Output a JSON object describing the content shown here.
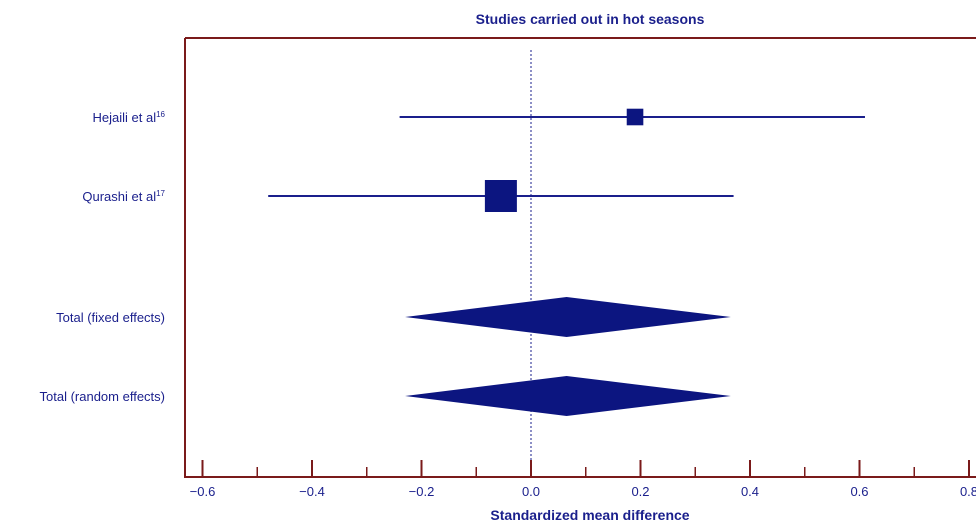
{
  "chart_data": {
    "type": "forest",
    "title": "Studies carried out in hot seasons",
    "xlabel": "Standardized mean difference",
    "xlim": [
      -0.6,
      0.8
    ],
    "ticks": [
      "−0.6",
      "−0.4",
      "−0.2",
      "0.0",
      "0.2",
      "0.4",
      "0.6",
      "0.8"
    ],
    "tick_values": [
      -0.6,
      -0.4,
      -0.2,
      0.0,
      0.2,
      0.4,
      0.6,
      0.8
    ],
    "minor_tick_values": [
      -0.5,
      -0.3,
      -0.1,
      0.1,
      0.3,
      0.5,
      0.7
    ],
    "studies": [
      {
        "label": "Hejaili et al",
        "ref": "16",
        "estimate": 0.19,
        "ci": [
          -0.24,
          0.61
        ],
        "weight": 0.3
      },
      {
        "label": "Qurashi et al",
        "ref": "17",
        "estimate": -0.055,
        "ci": [
          -0.48,
          0.37
        ],
        "weight": 1.0
      }
    ],
    "totals": [
      {
        "label": "Total (fixed effects)",
        "estimate": 0.065,
        "ci": [
          -0.23,
          0.365
        ]
      },
      {
        "label": "Total (random effects)",
        "estimate": 0.065,
        "ci": [
          -0.23,
          0.365
        ]
      }
    ],
    "colors": {
      "frame": "#7a1a1a",
      "marks": "#1a1f8c",
      "fill": "#0c1580"
    }
  }
}
